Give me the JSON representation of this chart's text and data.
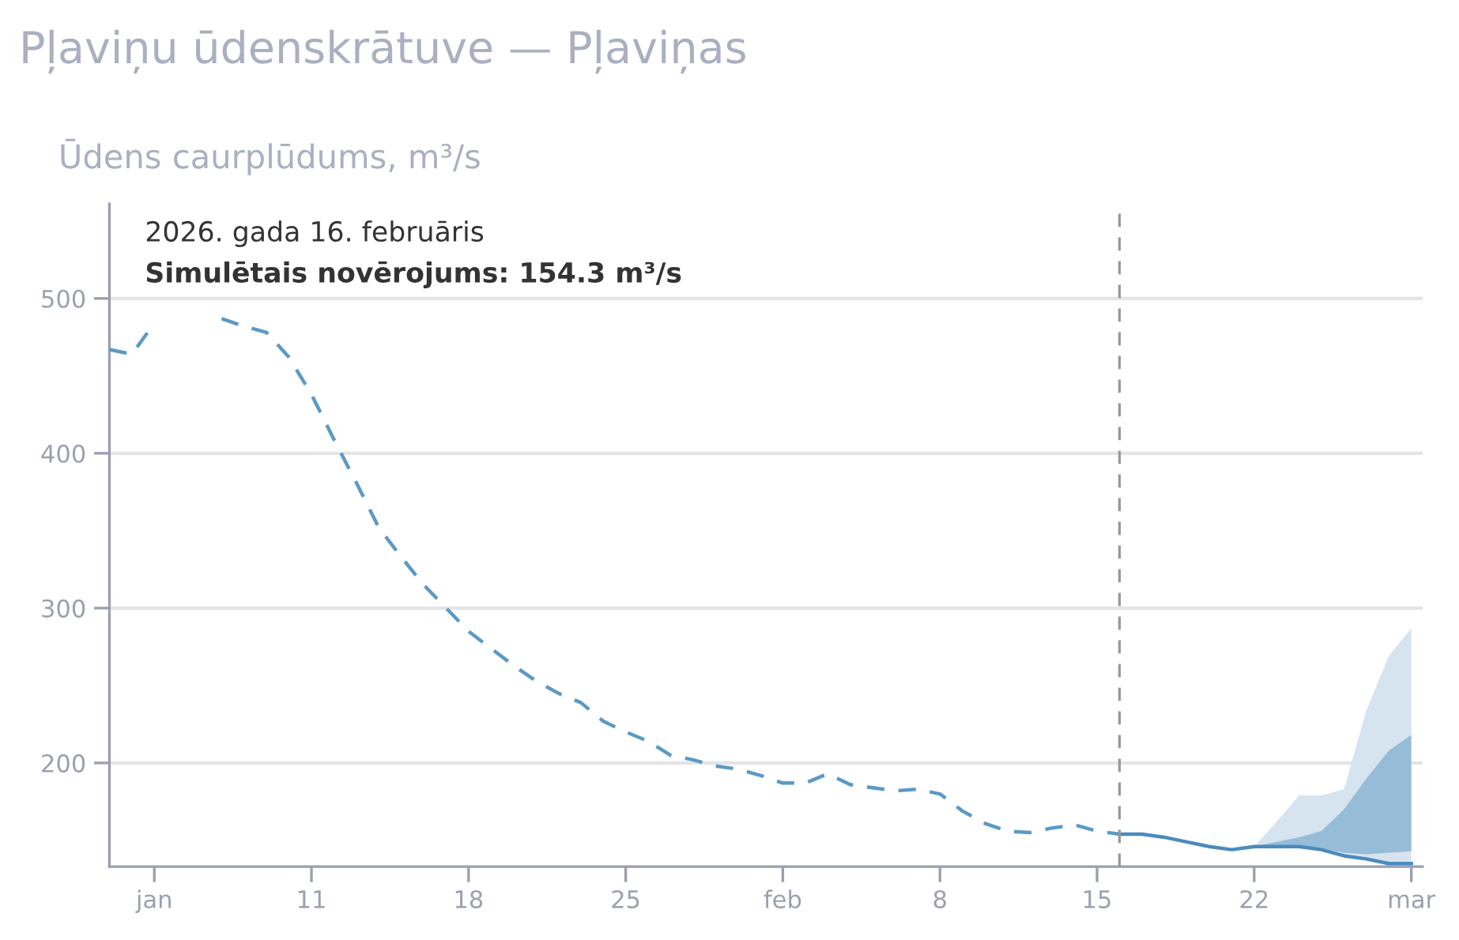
{
  "chart_data": {
    "type": "line",
    "title": "Pļaviņu ūdenskrātuve — Pļaviņas",
    "ylabel": "Ūdens caurplūdums, m³/s",
    "annotations": [
      "2026. gada 16. februāris",
      "Simulētais novērojums: 154.3 m³/s"
    ],
    "xlim": [
      "2026-01-02",
      "2026-03-01T12:00"
    ],
    "xticks": [
      {
        "value": "2026-01-04",
        "label": "jan"
      },
      {
        "value": "2026-01-11",
        "label": "11"
      },
      {
        "value": "2026-01-18",
        "label": "18"
      },
      {
        "value": "2026-01-25",
        "label": "25"
      },
      {
        "value": "2026-02-01",
        "label": "feb"
      },
      {
        "value": "2026-02-08",
        "label": "8"
      },
      {
        "value": "2026-02-15",
        "label": "15"
      },
      {
        "value": "2026-02-22",
        "label": "22"
      },
      {
        "value": "2026-03-01",
        "label": "mar"
      }
    ],
    "ylim": [
      133,
      561
    ],
    "yticks": [
      200,
      300,
      400,
      500
    ],
    "grid": "y",
    "marker": "none",
    "ref_lines": [
      {
        "axis": "x",
        "value": "2026-02-16",
        "color": "#999999",
        "line_style": "dashed"
      }
    ],
    "series": [
      {
        "color": "#5b9ac4",
        "line_style": "dashed",
        "x": [
          "2026-01-02",
          "2026-01-03",
          "2026-01-04",
          "2026-01-05",
          "2026-01-06",
          "2026-01-07",
          "2026-01-08",
          "2026-01-09",
          "2026-01-10",
          "2026-01-11",
          "2026-01-12",
          "2026-01-13",
          "2026-01-14",
          "2026-01-15",
          "2026-01-16",
          "2026-01-17",
          "2026-01-18",
          "2026-01-19",
          "2026-01-20",
          "2026-01-21",
          "2026-01-22",
          "2026-01-23",
          "2026-01-24",
          "2026-01-25",
          "2026-01-26",
          "2026-01-27",
          "2026-01-28",
          "2026-01-29",
          "2026-01-30",
          "2026-01-31",
          "2026-02-01",
          "2026-02-02",
          "2026-02-03",
          "2026-02-04",
          "2026-02-05",
          "2026-02-06",
          "2026-02-07",
          "2026-02-08",
          "2026-02-09",
          "2026-02-10",
          "2026-02-11",
          "2026-02-12",
          "2026-02-13",
          "2026-02-14",
          "2026-02-15",
          "2026-02-16"
        ],
        "values": [
          467,
          464,
          484,
          null,
          null,
          487,
          482,
          478,
          462,
          438,
          409,
          381,
          352,
          333,
          315,
          300,
          285,
          274,
          263,
          253,
          245,
          239,
          227,
          220,
          214,
          205,
          202,
          198,
          196,
          192,
          187,
          187,
          193,
          186,
          184,
          182,
          183,
          180,
          169,
          161,
          156,
          155,
          158,
          160,
          156,
          154
        ]
      },
      {
        "color": "#d5e4ef",
        "x": [
          "2026-02-16",
          "2026-02-17",
          "2026-02-18",
          "2026-02-19",
          "2026-02-20",
          "2026-02-21",
          "2026-02-22",
          "2026-02-23",
          "2026-02-24",
          "2026-02-25",
          "2026-02-26",
          "2026-02-27",
          "2026-02-28",
          "2026-03-01"
        ],
        "values": [
          null,
          null,
          null,
          null,
          null,
          null,
          null,
          null,
          null,
          null,
          null,
          null,
          null,
          null
        ],
        "lower": [
          154.3,
          154,
          152,
          149,
          146,
          144,
          146,
          146,
          145,
          143,
          139,
          137,
          134,
          134
        ],
        "upper": [
          154.3,
          154,
          152,
          149,
          146,
          144,
          146,
          162,
          179,
          179,
          183,
          234,
          269,
          287
        ]
      },
      {
        "color": "#4a8bbd",
        "line_style": "solid",
        "x": [
          "2026-02-16",
          "2026-02-17",
          "2026-02-18",
          "2026-02-19",
          "2026-02-20",
          "2026-02-21",
          "2026-02-22",
          "2026-02-23",
          "2026-02-24",
          "2026-02-25",
          "2026-02-26",
          "2026-02-27",
          "2026-02-28",
          "2026-03-01"
        ],
        "values": [
          154,
          154,
          152,
          149,
          146,
          144,
          146,
          146,
          146,
          144,
          140,
          138,
          135,
          135
        ],
        "lower": [
          154.3,
          154,
          152,
          149,
          146,
          144,
          146,
          146,
          146,
          145,
          142,
          141,
          142,
          143
        ],
        "upper": [
          154.3,
          154,
          152,
          149,
          146,
          144,
          146,
          149,
          152,
          156,
          170,
          190,
          208,
          218
        ]
      }
    ]
  }
}
